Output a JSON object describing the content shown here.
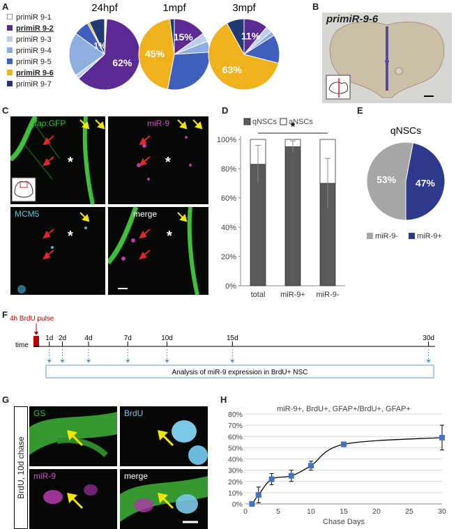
{
  "panels": {
    "a": "A",
    "b": "B",
    "c": "C",
    "d": "D",
    "e": "E",
    "f": "F",
    "g": "G",
    "h": "H"
  },
  "panelA": {
    "legend": [
      {
        "label": "primiR 9-1",
        "color": "#ffffff",
        "bold": false
      },
      {
        "label": "primiR 9-2",
        "color": "#5b2a93",
        "bold": true
      },
      {
        "label": "primiR 9-3",
        "color": "#bcd0ec",
        "bold": false
      },
      {
        "label": "primiR 9-4",
        "color": "#8faee0",
        "bold": false
      },
      {
        "label": "primiR 9-5",
        "color": "#3e5fbe",
        "bold": false
      },
      {
        "label": "primiR 9-6",
        "color": "#f0b21c",
        "bold": true
      },
      {
        "label": "primiR 9-7",
        "color": "#223a72",
        "bold": false
      }
    ]
  },
  "chart_data": [
    {
      "type": "pie",
      "title": "24hpf",
      "labels": [
        "primiR 9-1",
        "primiR 9-2",
        "primiR 9-3",
        "primiR 9-4",
        "primiR 9-5",
        "primiR 9-6",
        "primiR 9-7"
      ],
      "values": [
        1,
        62,
        2,
        20,
        7,
        1,
        7
      ],
      "data_labels": [
        {
          "slice": 1,
          "text": "62%"
        },
        {
          "slice": 5,
          "text": "1%"
        }
      ]
    },
    {
      "type": "pie",
      "title": "1mpf",
      "labels": [
        "primiR 9-1",
        "primiR 9-2",
        "primiR 9-3",
        "primiR 9-4",
        "primiR 9-5",
        "primiR 9-6",
        "primiR 9-7"
      ],
      "values": [
        0,
        15,
        4,
        5,
        29,
        45,
        2
      ],
      "data_labels": [
        {
          "slice": 1,
          "text": "15%"
        },
        {
          "slice": 5,
          "text": "45%"
        }
      ]
    },
    {
      "type": "pie",
      "title": "3mpf",
      "labels": [
        "primiR 9-1",
        "primiR 9-2",
        "primiR 9-3",
        "primiR 9-4",
        "primiR 9-5",
        "primiR 9-6",
        "primiR 9-7"
      ],
      "values": [
        0,
        11,
        3,
        2,
        13,
        63,
        8
      ],
      "data_labels": [
        {
          "slice": 1,
          "text": "11%"
        },
        {
          "slice": 5,
          "text": "63%"
        }
      ]
    },
    {
      "type": "bar",
      "stacked": true,
      "categories": [
        "total",
        "miR-9+",
        "miR-9-"
      ],
      "series": [
        {
          "name": "qNSCs",
          "values": [
            83,
            95,
            70
          ],
          "color": "#595959"
        },
        {
          "name": "aNSCs",
          "values": [
            17,
            5,
            30
          ],
          "color": "#ffffff"
        }
      ],
      "error_bars": [
        13,
        4,
        17
      ],
      "ylim": [
        0,
        100
      ],
      "yticks": [
        "0%",
        "20%",
        "40%",
        "60%",
        "80%",
        "100%"
      ],
      "legend": "top",
      "annotation": "*"
    },
    {
      "type": "pie",
      "title": "qNSCs",
      "labels": [
        "miR-9-",
        "miR-9+"
      ],
      "values": [
        53,
        47
      ],
      "colors": [
        "#a6a6a6",
        "#2d3a8c"
      ],
      "data_labels": [
        "53%",
        "47%"
      ],
      "legend": "bottom"
    },
    {
      "type": "line",
      "title": "miR-9+, BrdU+, GFAP+/BrdU+, GFAP+",
      "xlabel": "Chase Days",
      "ylabel": "",
      "x": [
        1,
        2,
        4,
        7,
        10,
        15,
        30
      ],
      "y": [
        0,
        8,
        22,
        25,
        34,
        53,
        59
      ],
      "error": [
        1,
        7,
        5,
        5,
        4,
        2,
        11
      ],
      "xlim": [
        0,
        30
      ],
      "ylim": [
        0,
        80
      ],
      "xticks": [
        "0",
        "5",
        "10",
        "15",
        "20",
        "25",
        "30"
      ],
      "yticks": [
        "0%",
        "10%",
        "20%",
        "30%",
        "40%",
        "50%",
        "60%",
        "70%",
        "80%"
      ],
      "grid": true,
      "color": "#4472c4"
    }
  ],
  "panelB": {
    "title": "primiR-9-6"
  },
  "panelC": {
    "gfap": "gfap",
    "gfap_suffix": ":GFP",
    "mir9": "miR-9",
    "mcm5": "MCM5",
    "merge": "merge",
    "asterisk": "*"
  },
  "panelF": {
    "pulse": "4h BrdU pulse",
    "time": "time",
    "days": [
      "1d",
      "2d",
      "4d",
      "7d",
      "10d",
      "15d",
      "30d"
    ],
    "box": "Analysis of miR-9 expression in BrdU+ NSC"
  },
  "panelG": {
    "side": "BrdU, 10d chase",
    "gs": "GS",
    "brdu": "BrdU",
    "mir9": "miR-9",
    "merge": "merge"
  }
}
